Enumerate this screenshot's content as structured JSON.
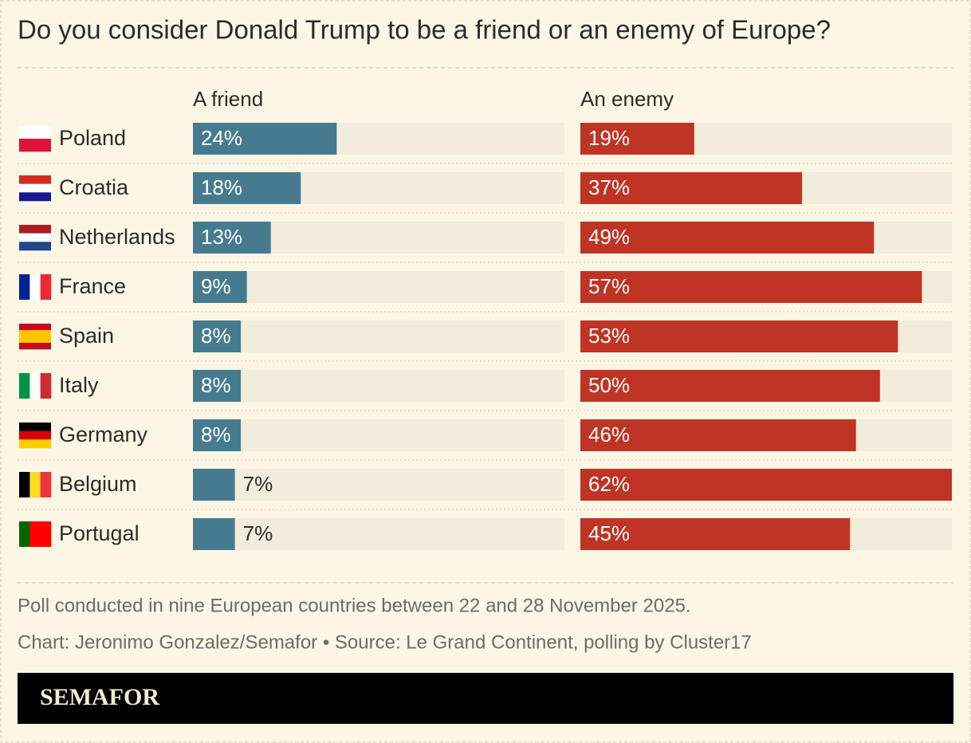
{
  "chart_data": {
    "type": "bar",
    "title": "Do you consider Donald Trump to be a friend or an enemy of Europe?",
    "categories": [
      "Poland",
      "Croatia",
      "Netherlands",
      "France",
      "Spain",
      "Italy",
      "Germany",
      "Belgium",
      "Portugal"
    ],
    "series": [
      {
        "name": "A friend",
        "color": "#467b8f",
        "values": [
          24,
          18,
          13,
          9,
          8,
          8,
          8,
          7,
          7
        ],
        "value_labels": [
          "24%",
          "18%",
          "13%",
          "9%",
          "8%",
          "8%",
          "8%",
          "7%",
          "7%"
        ]
      },
      {
        "name": "An enemy",
        "color": "#bf3424",
        "values": [
          19,
          37,
          49,
          57,
          53,
          50,
          46,
          62,
          45
        ],
        "value_labels": [
          "19%",
          "37%",
          "49%",
          "57%",
          "53%",
          "50%",
          "46%",
          "62%",
          "45%"
        ]
      }
    ],
    "xlim": [
      0,
      62
    ],
    "note": "Poll conducted in nine European countries between 22 and 28 November 2025.",
    "source": "Chart: Jeronimo Gonzalez/Semafor • Source: Le Grand Continent, polling by Cluster17",
    "brand": "SEMAFOR"
  }
}
